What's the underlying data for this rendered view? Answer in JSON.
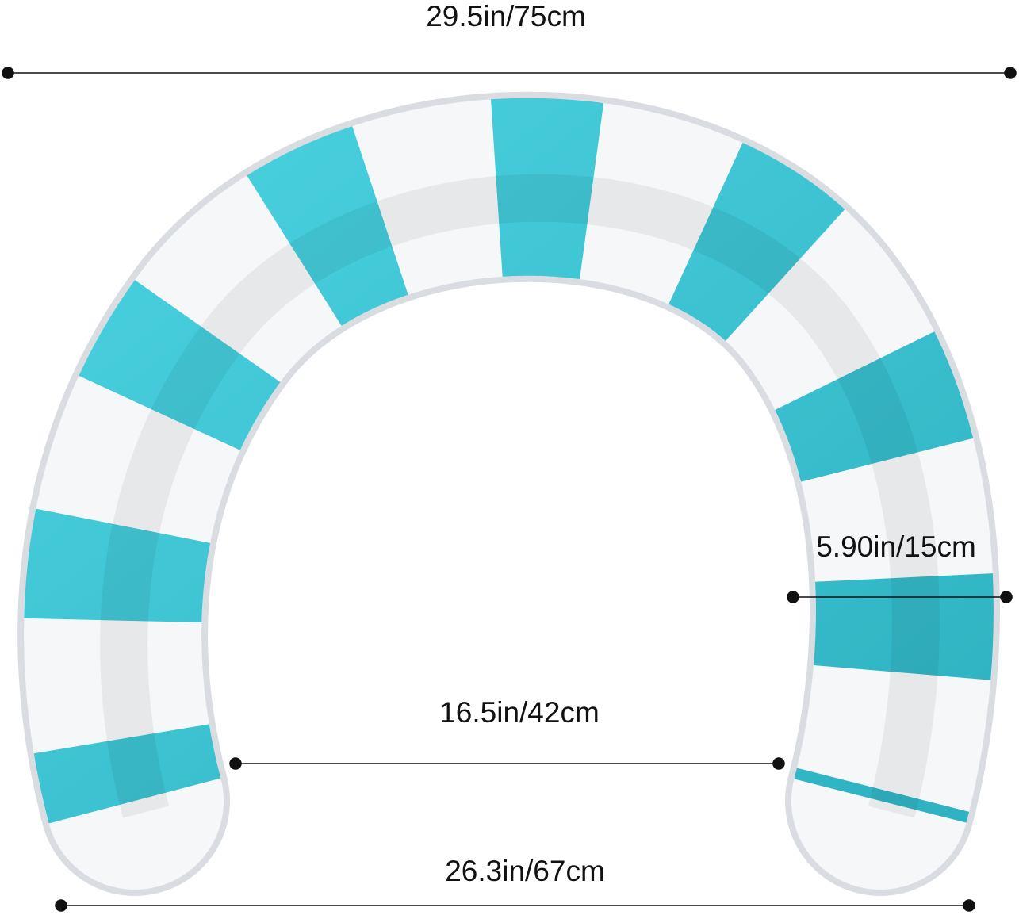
{
  "product": {
    "name_icon": "inflatable-striped-pool-float",
    "colors": {
      "stripe": "#3cc3d2",
      "base": "#f4f6f8"
    }
  },
  "dimensions": {
    "overall_width": "29.5in/75cm",
    "tube_diameter": "5.90in/15cm",
    "inner_opening": "16.5in/42cm",
    "base_width": "26.3in/67cm"
  }
}
